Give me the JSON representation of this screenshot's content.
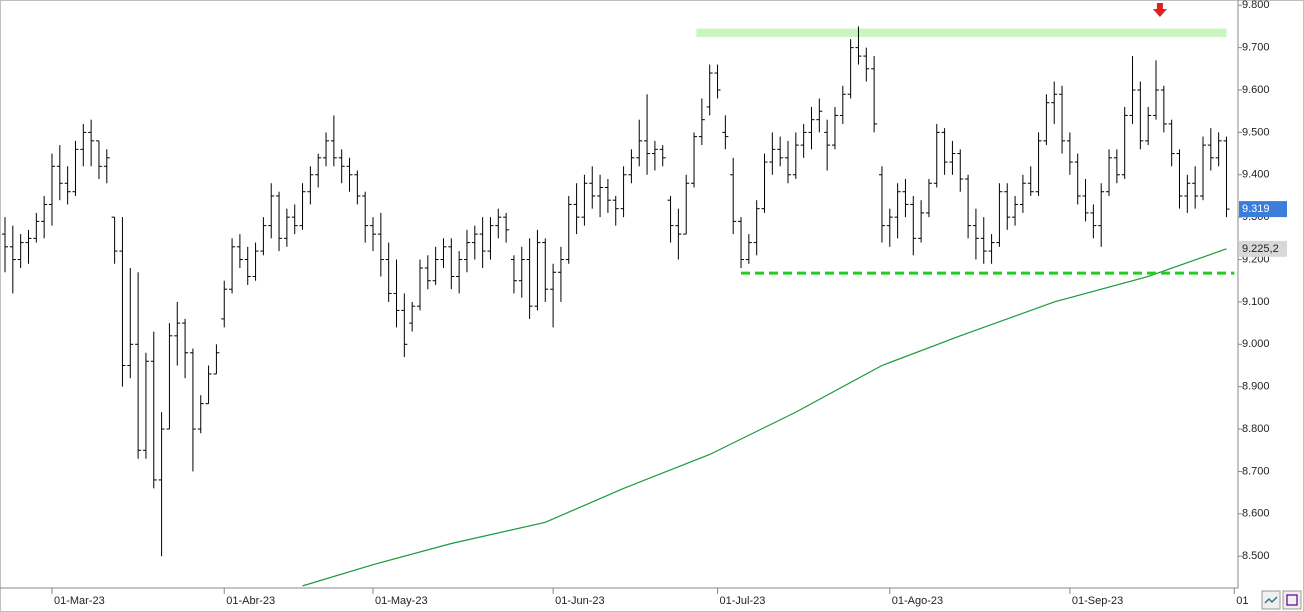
{
  "chart_data": {
    "type": "ohlc",
    "categories": [
      null,
      null,
      null,
      null,
      null,
      null,
      "01-Mar-23",
      null,
      null,
      null,
      null,
      null,
      null,
      null,
      null,
      null,
      null,
      null,
      null,
      null,
      null,
      null,
      null,
      null,
      null,
      null,
      null,
      null,
      "01-Abr-23",
      null,
      null,
      null,
      null,
      null,
      null,
      null,
      null,
      null,
      null,
      null,
      null,
      null,
      null,
      null,
      null,
      null,
      null,
      "01-May-23",
      null,
      null,
      null,
      null,
      null,
      null,
      null,
      null,
      null,
      null,
      null,
      null,
      null,
      null,
      null,
      null,
      null,
      null,
      null,
      null,
      null,
      null,
      "01-Jun-23",
      null,
      null,
      null,
      null,
      null,
      null,
      null,
      null,
      null,
      null,
      null,
      null,
      null,
      null,
      null,
      null,
      null,
      null,
      null,
      null,
      "01-Jul-23",
      null,
      null,
      null,
      null,
      null,
      null,
      null,
      null,
      null,
      null,
      null,
      null,
      null,
      null,
      null,
      null,
      null,
      null,
      null,
      null,
      null,
      "01-Ago-23",
      null,
      null,
      null,
      null,
      null,
      null,
      null,
      null,
      null,
      null,
      null,
      null,
      null,
      null,
      null,
      null,
      null,
      null,
      null,
      null,
      null,
      null,
      "01-Sep-23",
      null,
      null,
      null,
      null,
      null,
      null,
      null,
      null,
      null,
      null,
      null,
      null,
      null,
      null,
      null,
      null,
      null,
      null,
      null,
      null,
      "01"
    ],
    "ohlc": {
      "color": "#000000",
      "open": [
        9260,
        9230,
        9200,
        9240,
        9250,
        9290,
        9330,
        9420,
        9380,
        9360,
        9460,
        9500,
        9480,
        9420,
        9300,
        9220,
        8950,
        9000,
        8750,
        8960,
        8680,
        8800,
        9020,
        9050,
        8980,
        8800,
        8860,
        8930,
        9060,
        9130,
        9230,
        9200,
        9160,
        9220,
        9280,
        9350,
        9250,
        9300,
        9280,
        9360,
        9400,
        9440,
        9480,
        9440,
        9420,
        9400,
        9350,
        9280,
        9260,
        9200,
        9120,
        9080,
        9050,
        9090,
        9180,
        9150,
        9200,
        9230,
        9160,
        9200,
        9240,
        9260,
        9220,
        9280,
        9300,
        9200,
        9150,
        9200,
        9090,
        9240,
        9130,
        9170,
        9200,
        9330,
        9300,
        9380,
        9350,
        9370,
        9340,
        9320,
        9400,
        9440,
        9480,
        9450,
        9460,
        9340,
        9280,
        9260,
        9380,
        9490,
        9560,
        9640,
        9500,
        9400,
        9290,
        9200,
        9240,
        9320,
        9430,
        9460,
        9440,
        9400,
        9470,
        9500,
        9530,
        9500,
        9470,
        9540,
        9590,
        9700,
        9680,
        9650,
        9400,
        9280,
        9300,
        9360,
        9330,
        9250,
        9310,
        9380,
        9500,
        9430,
        9450,
        9390,
        9280,
        9250,
        9220,
        9240,
        9360,
        9300,
        9330,
        9380,
        9360,
        9480,
        9570,
        9590,
        9480,
        9430,
        9350,
        9310,
        9280,
        9360,
        9440,
        9400,
        9540,
        9600,
        9480,
        9540,
        9600,
        9520,
        9450,
        9350,
        9380,
        9350,
        9470,
        9440,
        9480
      ],
      "high": [
        9300,
        9280,
        9260,
        9270,
        9310,
        9350,
        9450,
        9470,
        9420,
        9480,
        9520,
        9530,
        9480,
        9460,
        9300,
        9300,
        9180,
        9170,
        8980,
        9030,
        8840,
        9050,
        9100,
        9060,
        8990,
        8880,
        8950,
        9000,
        9150,
        9250,
        9260,
        9230,
        9240,
        9300,
        9380,
        9360,
        9320,
        9330,
        9380,
        9420,
        9450,
        9500,
        9540,
        9460,
        9440,
        9410,
        9360,
        9300,
        9310,
        9240,
        9200,
        9120,
        9100,
        9200,
        9210,
        9230,
        9250,
        9250,
        9220,
        9270,
        9280,
        9300,
        9300,
        9320,
        9310,
        9210,
        9230,
        9250,
        9270,
        9250,
        9190,
        9230,
        9350,
        9380,
        9400,
        9420,
        9400,
        9390,
        9350,
        9420,
        9460,
        9530,
        9590,
        9480,
        9470,
        9350,
        9320,
        9400,
        9500,
        9580,
        9660,
        9660,
        9540,
        9440,
        9300,
        9260,
        9340,
        9450,
        9500,
        9490,
        9480,
        9500,
        9520,
        9560,
        9580,
        9530,
        9560,
        9610,
        9720,
        9750,
        9700,
        9680,
        9420,
        9320,
        9380,
        9390,
        9350,
        9340,
        9390,
        9520,
        9510,
        9480,
        9460,
        9400,
        9320,
        9300,
        9260,
        9380,
        9380,
        9350,
        9400,
        9420,
        9500,
        9590,
        9620,
        9610,
        9500,
        9450,
        9390,
        9330,
        9380,
        9460,
        9460,
        9560,
        9680,
        9620,
        9560,
        9670,
        9610,
        9530,
        9460,
        9400,
        9420,
        9490,
        9510,
        9500,
        9490
      ],
      "low": [
        9170,
        9120,
        9180,
        9190,
        9240,
        9250,
        9280,
        9340,
        9330,
        9350,
        9420,
        9420,
        9390,
        9380,
        9190,
        8900,
        8920,
        8730,
        8730,
        8660,
        8500,
        8800,
        8950,
        8920,
        8700,
        8790,
        8860,
        8930,
        9040,
        9120,
        9180,
        9140,
        9150,
        9210,
        9250,
        9220,
        9230,
        9260,
        9270,
        9330,
        9370,
        9420,
        9420,
        9380,
        9360,
        9330,
        9240,
        9220,
        9160,
        9100,
        9040,
        8970,
        9030,
        9080,
        9130,
        9140,
        9180,
        9130,
        9120,
        9170,
        9200,
        9180,
        9200,
        9250,
        9240,
        9120,
        9110,
        9060,
        9080,
        9100,
        9040,
        9100,
        9190,
        9260,
        9280,
        9320,
        9300,
        9310,
        9280,
        9300,
        9380,
        9420,
        9400,
        9410,
        9420,
        9240,
        9200,
        9260,
        9370,
        9470,
        9540,
        9580,
        9460,
        9260,
        9180,
        9190,
        9210,
        9310,
        9400,
        9420,
        9380,
        9390,
        9440,
        9460,
        9500,
        9410,
        9460,
        9520,
        9580,
        9660,
        9620,
        9500,
        9240,
        9230,
        9250,
        9300,
        9210,
        9240,
        9300,
        9370,
        9400,
        9400,
        9360,
        9250,
        9200,
        9190,
        9190,
        9230,
        9270,
        9280,
        9310,
        9350,
        9350,
        9470,
        9520,
        9450,
        9400,
        9330,
        9290,
        9250,
        9230,
        9350,
        9380,
        9390,
        9520,
        9460,
        9470,
        9530,
        9500,
        9420,
        9320,
        9310,
        9320,
        9340,
        9410,
        9420,
        9300
      ],
      "close": [
        9230,
        9200,
        9240,
        9250,
        9290,
        9330,
        9420,
        9380,
        9360,
        9460,
        9500,
        9480,
        9420,
        9440,
        9220,
        8950,
        9000,
        8750,
        8960,
        8680,
        8800,
        9020,
        9050,
        8980,
        8800,
        8860,
        8930,
        8980,
        9130,
        9230,
        9200,
        9160,
        9220,
        9280,
        9350,
        9250,
        9300,
        9280,
        9360,
        9400,
        9440,
        9480,
        9440,
        9420,
        9400,
        9350,
        9280,
        9260,
        9200,
        9120,
        9080,
        9000,
        9090,
        9180,
        9150,
        9200,
        9230,
        9160,
        9200,
        9240,
        9260,
        9220,
        9280,
        9300,
        9270,
        9150,
        9200,
        9090,
        9240,
        9130,
        9170,
        9200,
        9330,
        9300,
        9380,
        9350,
        9370,
        9340,
        9320,
        9400,
        9440,
        9480,
        9450,
        9460,
        9440,
        9280,
        9260,
        9380,
        9490,
        9530,
        9640,
        9600,
        9490,
        9290,
        9200,
        9240,
        9320,
        9430,
        9460,
        9440,
        9400,
        9470,
        9500,
        9530,
        9550,
        9470,
        9540,
        9590,
        9700,
        9680,
        9650,
        9520,
        9280,
        9300,
        9360,
        9330,
        9250,
        9310,
        9380,
        9500,
        9430,
        9450,
        9390,
        9280,
        9250,
        9220,
        9240,
        9360,
        9300,
        9330,
        9380,
        9360,
        9480,
        9570,
        9590,
        9480,
        9430,
        9350,
        9310,
        9280,
        9360,
        9440,
        9400,
        9540,
        9600,
        9480,
        9540,
        9600,
        9520,
        9450,
        9350,
        9380,
        9350,
        9470,
        9440,
        9480,
        9319
      ]
    },
    "series": [
      {
        "color": "#1a9a3a",
        "x": [
          38,
          47,
          57,
          69,
          79,
          90,
          101,
          112,
          122,
          134,
          146,
          156
        ],
        "values": [
          8430,
          8480,
          8530,
          8580,
          8660,
          8740,
          8840,
          8950,
          9020,
          9100,
          9160,
          9225.2
        ]
      }
    ],
    "resistance_band": {
      "color": "#c8f5c0",
      "ylim": [
        9725,
        9745
      ],
      "xlim": [
        88.3,
        156
      ]
    },
    "support_line": {
      "color": "#22cc22",
      "value": 9168,
      "xlim": [
        94,
        157
      ]
    },
    "arrow": {
      "color": "#e02020",
      "x": 147.5
    },
    "price_tags": [
      {
        "value": 9319,
        "label": "9.319",
        "color": "#3b7dd8"
      },
      {
        "value": 9225.2,
        "label": "9.225,2",
        "color": "#d8d8d8"
      }
    ],
    "ylim": [
      8425,
      9810
    ],
    "yticks": [
      {
        "value": 8500,
        "label": "8.500"
      },
      {
        "value": 8600,
        "label": "8.600"
      },
      {
        "value": 8700,
        "label": "8.700"
      },
      {
        "value": 8800,
        "label": "8.800"
      },
      {
        "value": 8900,
        "label": "8.900"
      },
      {
        "value": 9000,
        "label": "9.000"
      },
      {
        "value": 9100,
        "label": "9.100"
      },
      {
        "value": 9200,
        "label": "9.200"
      },
      {
        "value": 9300,
        "label": "9.300"
      },
      {
        "value": 9400,
        "label": "9.400"
      },
      {
        "value": 9500,
        "label": "9.500"
      },
      {
        "value": 9600,
        "label": "9.600"
      },
      {
        "value": 9700,
        "label": "9.700"
      },
      {
        "value": 9800,
        "label": "9.800"
      }
    ]
  }
}
